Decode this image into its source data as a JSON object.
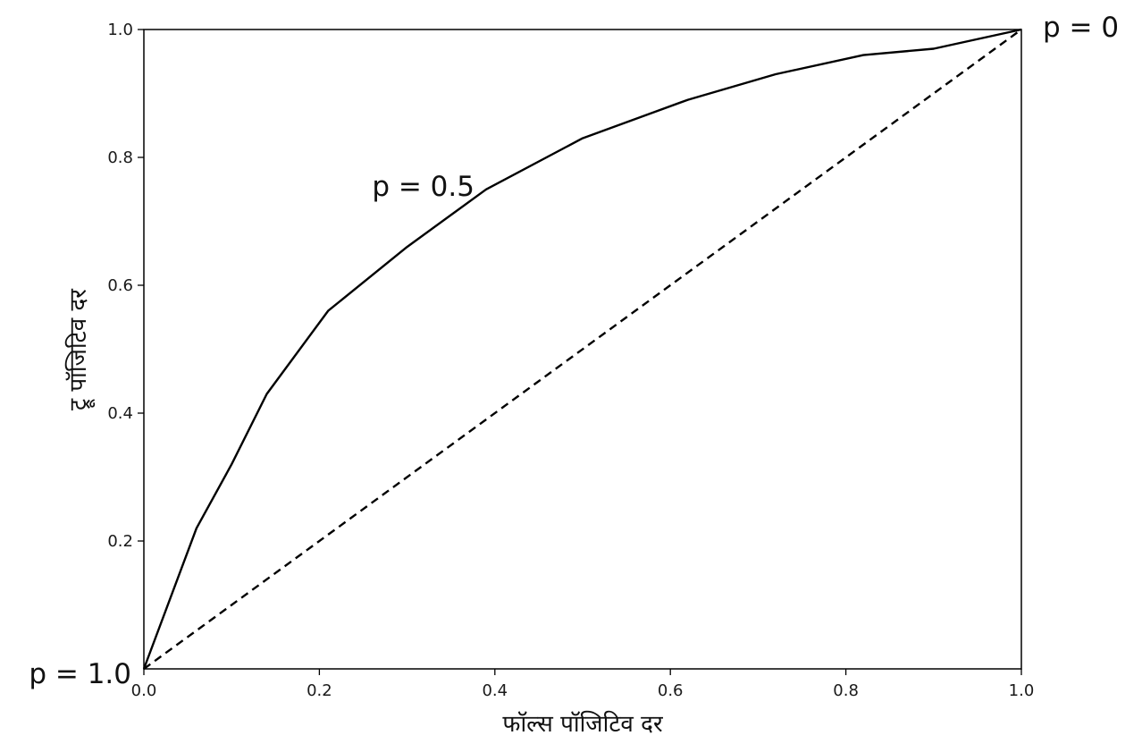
{
  "chart_data": {
    "type": "line",
    "title": "",
    "xlabel": "फॉल्स पॉजिटिव दर",
    "ylabel": "ट्रू पॉजिटिव दर",
    "xlim": [
      0.0,
      1.0
    ],
    "ylim": [
      0.0,
      1.0
    ],
    "xticks": [
      "0.0",
      "0.2",
      "0.4",
      "0.6",
      "0.8",
      "1.0"
    ],
    "yticks": [
      "0.2",
      "0.4",
      "0.6",
      "0.8",
      "1.0"
    ],
    "grid": false,
    "legend": false,
    "series": [
      {
        "style": "solid",
        "color": "#000000",
        "x": [
          0.0,
          0.06,
          0.1,
          0.14,
          0.21,
          0.3,
          0.39,
          0.5,
          0.62,
          0.72,
          0.82,
          0.9,
          1.0
        ],
        "y": [
          0.0,
          0.22,
          0.32,
          0.43,
          0.56,
          0.66,
          0.75,
          0.83,
          0.89,
          0.93,
          0.96,
          0.97,
          1.0
        ]
      },
      {
        "style": "dashed",
        "color": "#000000",
        "x": [
          0.0,
          1.0
        ],
        "y": [
          0.0,
          1.0
        ]
      }
    ],
    "annotations": [
      {
        "text": "p = 1.0",
        "x": 0.0,
        "y": 0.0
      },
      {
        "text": "p = 0.5",
        "x": 0.26,
        "y": 0.74
      },
      {
        "text": "p = 0",
        "x": 1.0,
        "y": 1.0
      }
    ]
  }
}
